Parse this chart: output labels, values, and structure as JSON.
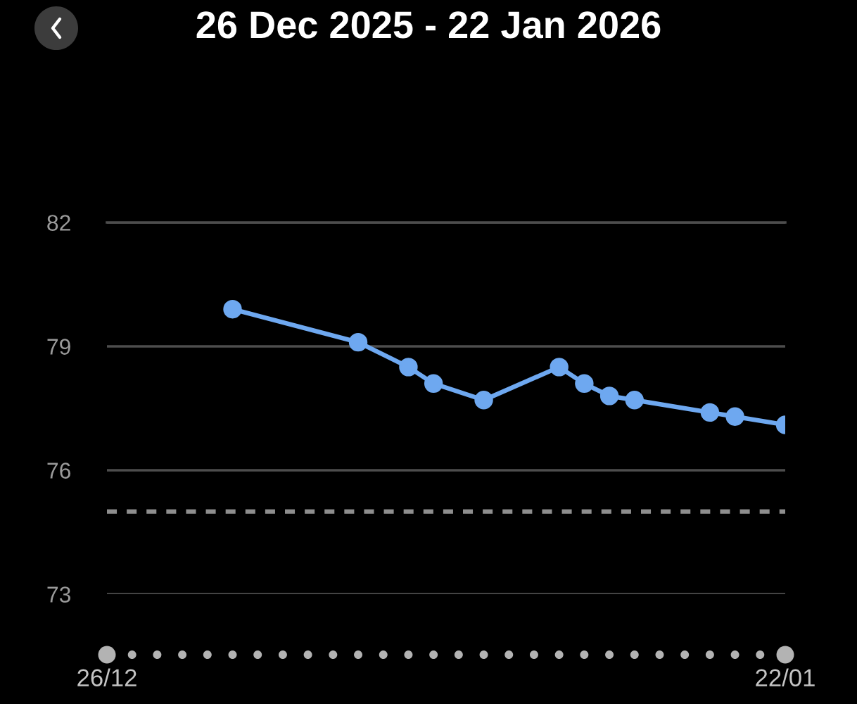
{
  "chart_data": {
    "type": "line",
    "title": "26 Dec 2025 - 22 Jan 2026",
    "x": [
      "2025-12-31",
      "2026-01-05",
      "2026-01-07",
      "2026-01-08",
      "2026-01-10",
      "2026-01-13",
      "2026-01-14",
      "2026-01-15",
      "2026-01-16",
      "2026-01-19",
      "2026-01-20",
      "2026-01-22"
    ],
    "series": [
      {
        "color": "#6ea8f0",
        "values": [
          79.9,
          79.1,
          78.5,
          78.1,
          77.7,
          78.5,
          78.1,
          77.8,
          77.7,
          77.4,
          77.3,
          77.1
        ]
      }
    ],
    "xlim": [
      "2025-12-26",
      "2026-01-22"
    ],
    "xticks": [
      {
        "value": "2025-12-26",
        "label": "26/12"
      },
      {
        "value": "2026-01-22",
        "label": "22/01"
      }
    ],
    "ylim": [
      73,
      82
    ],
    "yticks": [
      73,
      76,
      79,
      82
    ],
    "grid": "y",
    "marker": "circle",
    "line_style": "solid",
    "ref_lines": [
      {
        "axis": "y",
        "value": 75,
        "color": "#8e8e8e",
        "line_style": "dashed"
      }
    ]
  }
}
